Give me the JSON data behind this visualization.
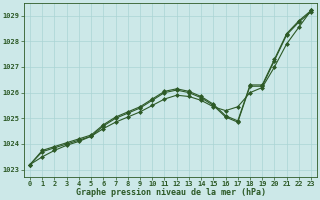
{
  "bg_color": "#cce8e8",
  "grid_color": "#aad4d4",
  "line_color": "#2d5a27",
  "xlabel": "Graphe pression niveau de la mer (hPa)",
  "xlabel_fontsize": 6.0,
  "xlabel_color": "#2d5a27",
  "tick_color": "#2d5a27",
  "tick_fontsize": 5.0,
  "ylim": [
    1022.7,
    1029.5
  ],
  "xlim": [
    -0.5,
    23.5
  ],
  "yticks": [
    1023,
    1024,
    1025,
    1026,
    1027,
    1028,
    1029
  ],
  "xticks": [
    0,
    1,
    2,
    3,
    4,
    5,
    6,
    7,
    8,
    9,
    10,
    11,
    12,
    13,
    14,
    15,
    16,
    17,
    18,
    19,
    20,
    21,
    22,
    23
  ],
  "series": [
    {
      "x": [
        0,
        1,
        2,
        3,
        4,
        5,
        6,
        7,
        8,
        9,
        10,
        11,
        12,
        13,
        14,
        15,
        16,
        17,
        18,
        19,
        20,
        21,
        22,
        23
      ],
      "y": [
        1023.2,
        1023.75,
        1023.9,
        1024.05,
        1024.2,
        1024.35,
        1024.75,
        1025.05,
        1025.25,
        1025.45,
        1025.75,
        1026.05,
        1026.15,
        1026.05,
        1025.85,
        1025.55,
        1025.1,
        1024.9,
        1026.3,
        1026.3,
        1027.3,
        1028.3,
        1028.8,
        1029.2
      ],
      "marker": "D",
      "markersize": 2.0,
      "linewidth": 0.8
    },
    {
      "x": [
        0,
        1,
        2,
        3,
        4,
        5,
        6,
        7,
        8,
        9,
        10,
        11,
        12,
        13,
        14,
        15,
        16,
        17,
        18,
        19,
        20,
        21,
        22,
        23
      ],
      "y": [
        1023.2,
        1023.7,
        1023.85,
        1024.0,
        1024.15,
        1024.3,
        1024.7,
        1025.0,
        1025.2,
        1025.4,
        1025.7,
        1026.0,
        1026.1,
        1026.0,
        1025.8,
        1025.5,
        1025.05,
        1024.85,
        1026.25,
        1026.25,
        1027.25,
        1028.25,
        1028.75,
        1029.15
      ],
      "marker": "D",
      "markersize": 2.0,
      "linewidth": 0.8
    },
    {
      "x": [
        0,
        1,
        2,
        3,
        4,
        5,
        6,
        7,
        8,
        9,
        10,
        11,
        12,
        13,
        14,
        15,
        16,
        17,
        18,
        19,
        20,
        21,
        22,
        23
      ],
      "y": [
        1023.2,
        1023.5,
        1023.75,
        1023.95,
        1024.1,
        1024.3,
        1024.6,
        1024.85,
        1025.05,
        1025.25,
        1025.5,
        1025.75,
        1025.9,
        1025.85,
        1025.7,
        1025.45,
        1025.3,
        1025.45,
        1026.0,
        1026.2,
        1027.0,
        1027.9,
        1028.55,
        1029.2
      ],
      "marker": "D",
      "markersize": 2.0,
      "linewidth": 0.8
    }
  ]
}
